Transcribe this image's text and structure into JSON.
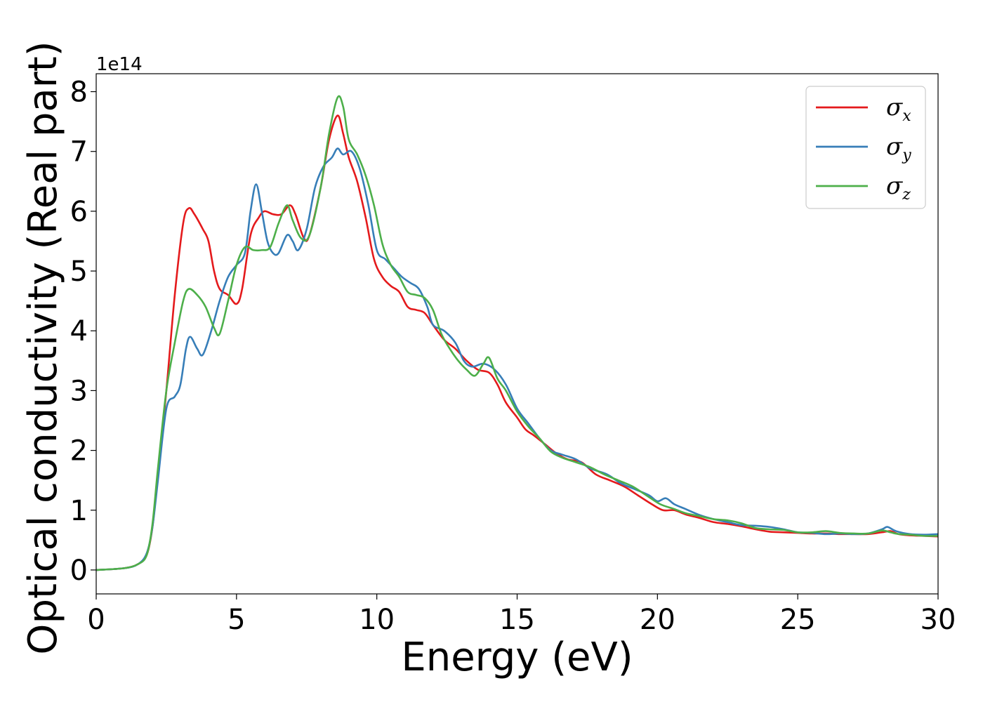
{
  "chart_data": {
    "type": "line",
    "xlabel": "Energy (eV)",
    "ylabel": "Optical conductivity (Real part)",
    "y_offset_label": "1e14",
    "xlim": [
      0,
      30
    ],
    "ylim": [
      -0.4,
      8.3
    ],
    "x_ticks": [
      0,
      5,
      10,
      15,
      20,
      25,
      30
    ],
    "y_ticks": [
      0,
      1,
      2,
      3,
      4,
      5,
      6,
      7,
      8
    ],
    "grid": false,
    "legend_position": "top-right",
    "series": [
      {
        "name": "σx",
        "symbol": "σ",
        "subscript": "x",
        "color": "#e41a1c",
        "points": [
          [
            0,
            0
          ],
          [
            1,
            0.03
          ],
          [
            1.5,
            0.1
          ],
          [
            1.8,
            0.25
          ],
          [
            2,
            0.7
          ],
          [
            2.2,
            1.6
          ],
          [
            2.5,
            3.0
          ],
          [
            2.8,
            4.6
          ],
          [
            3.1,
            5.8
          ],
          [
            3.3,
            6.05
          ],
          [
            3.5,
            5.95
          ],
          [
            3.8,
            5.7
          ],
          [
            4,
            5.5
          ],
          [
            4.2,
            5.0
          ],
          [
            4.4,
            4.7
          ],
          [
            4.7,
            4.6
          ],
          [
            5,
            4.45
          ],
          [
            5.2,
            4.7
          ],
          [
            5.5,
            5.6
          ],
          [
            5.8,
            5.9
          ],
          [
            6,
            6.0
          ],
          [
            6.3,
            5.95
          ],
          [
            6.6,
            5.95
          ],
          [
            6.9,
            6.1
          ],
          [
            7.1,
            5.95
          ],
          [
            7.4,
            5.55
          ],
          [
            7.6,
            5.6
          ],
          [
            8,
            6.4
          ],
          [
            8.3,
            7.2
          ],
          [
            8.6,
            7.6
          ],
          [
            8.8,
            7.3
          ],
          [
            9,
            6.9
          ],
          [
            9.3,
            6.5
          ],
          [
            9.6,
            5.9
          ],
          [
            9.9,
            5.2
          ],
          [
            10.2,
            4.9
          ],
          [
            10.5,
            4.75
          ],
          [
            10.8,
            4.65
          ],
          [
            11.1,
            4.4
          ],
          [
            11.4,
            4.35
          ],
          [
            11.7,
            4.3
          ],
          [
            12,
            4.1
          ],
          [
            12.4,
            3.85
          ],
          [
            12.8,
            3.7
          ],
          [
            13.2,
            3.5
          ],
          [
            13.6,
            3.35
          ],
          [
            14,
            3.3
          ],
          [
            14.3,
            3.1
          ],
          [
            14.6,
            2.8
          ],
          [
            15,
            2.55
          ],
          [
            15.3,
            2.35
          ],
          [
            15.6,
            2.25
          ],
          [
            16,
            2.1
          ],
          [
            16.4,
            1.95
          ],
          [
            16.8,
            1.85
          ],
          [
            17.3,
            1.8
          ],
          [
            17.8,
            1.6
          ],
          [
            18.3,
            1.5
          ],
          [
            18.8,
            1.4
          ],
          [
            19.3,
            1.25
          ],
          [
            19.8,
            1.1
          ],
          [
            20.2,
            1.0
          ],
          [
            20.6,
            1.0
          ],
          [
            21,
            0.93
          ],
          [
            21.5,
            0.87
          ],
          [
            22,
            0.8
          ],
          [
            22.5,
            0.77
          ],
          [
            23,
            0.73
          ],
          [
            23.5,
            0.68
          ],
          [
            24,
            0.64
          ],
          [
            24.5,
            0.63
          ],
          [
            25,
            0.62
          ],
          [
            25.5,
            0.61
          ],
          [
            26,
            0.61
          ],
          [
            26.5,
            0.6
          ],
          [
            27,
            0.6
          ],
          [
            27.5,
            0.6
          ],
          [
            28,
            0.63
          ],
          [
            28.3,
            0.65
          ],
          [
            28.6,
            0.6
          ],
          [
            29,
            0.58
          ],
          [
            29.5,
            0.57
          ],
          [
            30,
            0.56
          ]
        ]
      },
      {
        "name": "σy",
        "symbol": "σ",
        "subscript": "y",
        "color": "#377eb8",
        "points": [
          [
            0,
            0
          ],
          [
            1,
            0.03
          ],
          [
            1.5,
            0.1
          ],
          [
            1.8,
            0.28
          ],
          [
            2,
            0.7
          ],
          [
            2.2,
            1.5
          ],
          [
            2.5,
            2.7
          ],
          [
            2.8,
            2.9
          ],
          [
            3.0,
            3.1
          ],
          [
            3.2,
            3.7
          ],
          [
            3.35,
            3.9
          ],
          [
            3.6,
            3.7
          ],
          [
            3.8,
            3.6
          ],
          [
            4.1,
            4.0
          ],
          [
            4.4,
            4.5
          ],
          [
            4.7,
            4.9
          ],
          [
            5,
            5.1
          ],
          [
            5.3,
            5.3
          ],
          [
            5.5,
            6.0
          ],
          [
            5.7,
            6.45
          ],
          [
            5.9,
            6.0
          ],
          [
            6.1,
            5.5
          ],
          [
            6.3,
            5.3
          ],
          [
            6.5,
            5.3
          ],
          [
            6.8,
            5.6
          ],
          [
            7,
            5.5
          ],
          [
            7.2,
            5.35
          ],
          [
            7.5,
            5.7
          ],
          [
            7.8,
            6.4
          ],
          [
            8.1,
            6.75
          ],
          [
            8.4,
            6.9
          ],
          [
            8.6,
            7.05
          ],
          [
            8.8,
            6.95
          ],
          [
            9.1,
            7.0
          ],
          [
            9.4,
            6.7
          ],
          [
            9.7,
            6.1
          ],
          [
            10.0,
            5.35
          ],
          [
            10.3,
            5.2
          ],
          [
            10.6,
            5.05
          ],
          [
            10.9,
            4.9
          ],
          [
            11.2,
            4.8
          ],
          [
            11.5,
            4.7
          ],
          [
            11.8,
            4.4
          ],
          [
            12,
            4.1
          ],
          [
            12.4,
            4.0
          ],
          [
            12.8,
            3.8
          ],
          [
            13.1,
            3.5
          ],
          [
            13.4,
            3.4
          ],
          [
            13.8,
            3.45
          ],
          [
            14.2,
            3.35
          ],
          [
            14.6,
            3.1
          ],
          [
            15,
            2.7
          ],
          [
            15.4,
            2.45
          ],
          [
            15.8,
            2.2
          ],
          [
            16.2,
            2.0
          ],
          [
            16.6,
            1.93
          ],
          [
            17.1,
            1.85
          ],
          [
            17.6,
            1.7
          ],
          [
            18.2,
            1.6
          ],
          [
            18.7,
            1.45
          ],
          [
            19.2,
            1.35
          ],
          [
            19.7,
            1.25
          ],
          [
            20.0,
            1.15
          ],
          [
            20.3,
            1.2
          ],
          [
            20.6,
            1.1
          ],
          [
            21,
            1.02
          ],
          [
            21.5,
            0.92
          ],
          [
            22,
            0.85
          ],
          [
            22.5,
            0.8
          ],
          [
            23,
            0.75
          ],
          [
            23.5,
            0.74
          ],
          [
            24,
            0.72
          ],
          [
            24.5,
            0.68
          ],
          [
            25,
            0.63
          ],
          [
            25.5,
            0.62
          ],
          [
            26,
            0.6
          ],
          [
            26.5,
            0.61
          ],
          [
            27,
            0.6
          ],
          [
            27.5,
            0.61
          ],
          [
            28,
            0.68
          ],
          [
            28.2,
            0.72
          ],
          [
            28.5,
            0.65
          ],
          [
            29,
            0.6
          ],
          [
            29.5,
            0.59
          ],
          [
            30,
            0.6
          ]
        ]
      },
      {
        "name": "σz",
        "symbol": "σ",
        "subscript": "z",
        "color": "#4daf4a",
        "points": [
          [
            0,
            0
          ],
          [
            1,
            0.03
          ],
          [
            1.5,
            0.1
          ],
          [
            1.8,
            0.25
          ],
          [
            2,
            0.75
          ],
          [
            2.2,
            1.7
          ],
          [
            2.5,
            3.0
          ],
          [
            2.8,
            3.8
          ],
          [
            3.1,
            4.5
          ],
          [
            3.3,
            4.7
          ],
          [
            3.6,
            4.6
          ],
          [
            3.9,
            4.4
          ],
          [
            4.2,
            4.05
          ],
          [
            4.4,
            3.95
          ],
          [
            4.7,
            4.5
          ],
          [
            5,
            5.1
          ],
          [
            5.3,
            5.4
          ],
          [
            5.6,
            5.35
          ],
          [
            5.9,
            5.35
          ],
          [
            6.2,
            5.4
          ],
          [
            6.5,
            5.8
          ],
          [
            6.8,
            6.1
          ],
          [
            7.0,
            5.85
          ],
          [
            7.3,
            5.55
          ],
          [
            7.6,
            5.6
          ],
          [
            8,
            6.4
          ],
          [
            8.3,
            7.3
          ],
          [
            8.6,
            7.9
          ],
          [
            8.8,
            7.75
          ],
          [
            9.0,
            7.2
          ],
          [
            9.3,
            6.95
          ],
          [
            9.6,
            6.6
          ],
          [
            9.9,
            6.1
          ],
          [
            10.2,
            5.45
          ],
          [
            10.5,
            5.1
          ],
          [
            10.8,
            4.9
          ],
          [
            11.1,
            4.65
          ],
          [
            11.4,
            4.6
          ],
          [
            11.7,
            4.55
          ],
          [
            12,
            4.35
          ],
          [
            12.3,
            3.95
          ],
          [
            12.6,
            3.7
          ],
          [
            12.9,
            3.5
          ],
          [
            13.2,
            3.35
          ],
          [
            13.5,
            3.25
          ],
          [
            13.8,
            3.45
          ],
          [
            14.0,
            3.55
          ],
          [
            14.3,
            3.2
          ],
          [
            14.6,
            3.0
          ],
          [
            15,
            2.65
          ],
          [
            15.4,
            2.4
          ],
          [
            15.8,
            2.2
          ],
          [
            16.2,
            1.98
          ],
          [
            16.6,
            1.88
          ],
          [
            17.1,
            1.8
          ],
          [
            17.6,
            1.72
          ],
          [
            18.1,
            1.6
          ],
          [
            18.6,
            1.5
          ],
          [
            19.1,
            1.4
          ],
          [
            19.6,
            1.25
          ],
          [
            20.1,
            1.1
          ],
          [
            20.6,
            1.02
          ],
          [
            21,
            0.95
          ],
          [
            21.5,
            0.9
          ],
          [
            22,
            0.85
          ],
          [
            22.5,
            0.83
          ],
          [
            23,
            0.78
          ],
          [
            23.5,
            0.7
          ],
          [
            24,
            0.68
          ],
          [
            24.5,
            0.67
          ],
          [
            25,
            0.63
          ],
          [
            25.5,
            0.63
          ],
          [
            26,
            0.65
          ],
          [
            26.5,
            0.62
          ],
          [
            27,
            0.61
          ],
          [
            27.5,
            0.61
          ],
          [
            28,
            0.66
          ],
          [
            28.3,
            0.63
          ],
          [
            28.6,
            0.6
          ],
          [
            29,
            0.59
          ],
          [
            29.5,
            0.57
          ],
          [
            30,
            0.57
          ]
        ]
      }
    ]
  }
}
